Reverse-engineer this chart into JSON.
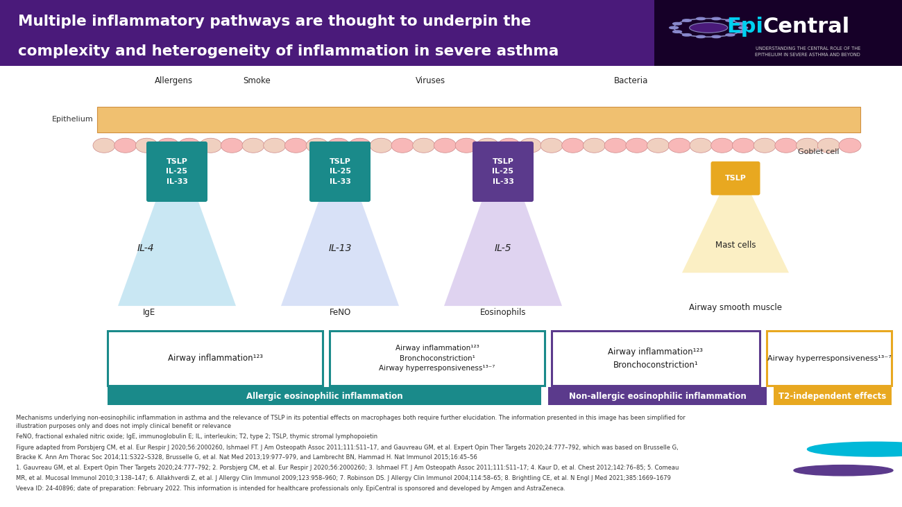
{
  "title_line1": "Multiple inflammatory pathways are thought to underpin the",
  "title_line2": "complexity and heterogeneity of inflammation in severe asthma",
  "header_bg": "#4a1a7a",
  "logo_bg": "#160028",
  "tslp_box1_color": "#1a8a8a",
  "tslp_box2_color": "#1a8a8a",
  "tslp_box3_color": "#5b3a8c",
  "tslp_box4_color": "#e8a820",
  "label_allergens": "Allergens",
  "label_smoke": "Smoke",
  "label_viruses": "Viruses",
  "label_bacteria": "Bacteria",
  "label_epithelium": "Epithelium",
  "label_goblet": "Goblet cell",
  "col1_tslp": "TSLP\nIL-25\nIL-33",
  "col2_tslp": "TSLP\nIL-25\nIL-33",
  "col3_tslp": "TSLP\nIL-25\nIL-33",
  "col4_tslp": "TSLP",
  "col1_cytokine": "IL-4",
  "col2_cytokine": "IL-13",
  "col3_cytokine": "IL-5",
  "col1_cell": "IgE",
  "col2_cell": "FeNO",
  "col3_cell": "Eosinophils",
  "col4_cell": "Airway smooth muscle",
  "col4_mast": "Mast cells",
  "box1_text": "Airway inflammation¹²³",
  "box2_text": "Airway inflammation¹²³\nBronchoconstriction¹\nAirway hyperresponsiveness¹³⁻⁷",
  "box3_text": "Airway inflammation¹²³\nBronchoconstriction¹",
  "box4_text": "Airway hyperresponsiveness¹³⁻⁷",
  "banner1_text": "Allergic eosinophilic inflammation",
  "banner2_text": "Non-allergic eosinophilic inflammation",
  "banner3_text": "T2-independent effects",
  "banner1_color": "#1a8a8a",
  "banner2_color": "#5b3a8c",
  "banner3_color": "#e8a820",
  "box1_border": "#1a8a8a",
  "box2_border": "#1a8a8a",
  "box3_border": "#5b3a8c",
  "box4_border": "#e8a820",
  "cone1_color": "#b8dff0",
  "cone2_color": "#ccd8f5",
  "cone3_color": "#d5c5ec",
  "cone4_color": "#faeab0",
  "footnote1": "Mechanisms underlying non-eosinophilic inflammation in asthma and the relevance of TSLP in its potential effects on macrophages both require further elucidation. The information presented in this image has been simplified for",
  "footnote2": "illustration purposes only and does not imply clinical benefit or relevance",
  "footnote3": "FeNO, fractional exhaled nitric oxide; IgE, immunoglobulin E; IL, interleukin; T2, type 2; TSLP, thymic stromal lymphopoietin",
  "footnote4": "Figure adapted from Porsbjerg CM, et al. Eur Respir J 2020;56:2000260, Ishmael FT. J Am Osteopath Assoc 2011;111:S11–17, and Gauvreau GM, et al. Expert Opin Ther Targets 2020;24:777–792, which was based on Brusselle G,",
  "footnote5": "Bracke K. Ann Am Thorac Soc 2014;11:S322–S328, Brusselle G, et al. Nat Med 2013;19:977–979, and Lambrecht BN, Hammad H. Nat Immunol 2015;16:45–56",
  "footnote6": "1. Gauvreau GM, et al. Expert Opin Ther Targets 2020;24:777–792; 2. Porsbjerg CM, et al. Eur Respir J 2020;56:2000260; 3. Ishmael FT. J Am Osteopath Assoc 2011;111:S11–17; 4. Kaur D, et al. Chest 2012;142:76–85; 5. Comeau",
  "footnote7": "MR, et al. Mucosal Immunol 2010;3:138–147; 6. Allakhverdi Z, et al. J Allergy Clin Immunol 2009;123:958–960; 7. Robinson DS. J Allergy Clin Immunol 2004;114:58–65; 8. Brightling CE, et al. N Engl J Med 2021;385:1669–1679",
  "footnote8": "Veeva ID: 24-40896; date of preparation: February 2022. This information is intended for healthcare professionals only. EpiCentral is sponsored and developed by Amgen and AstraZeneca."
}
